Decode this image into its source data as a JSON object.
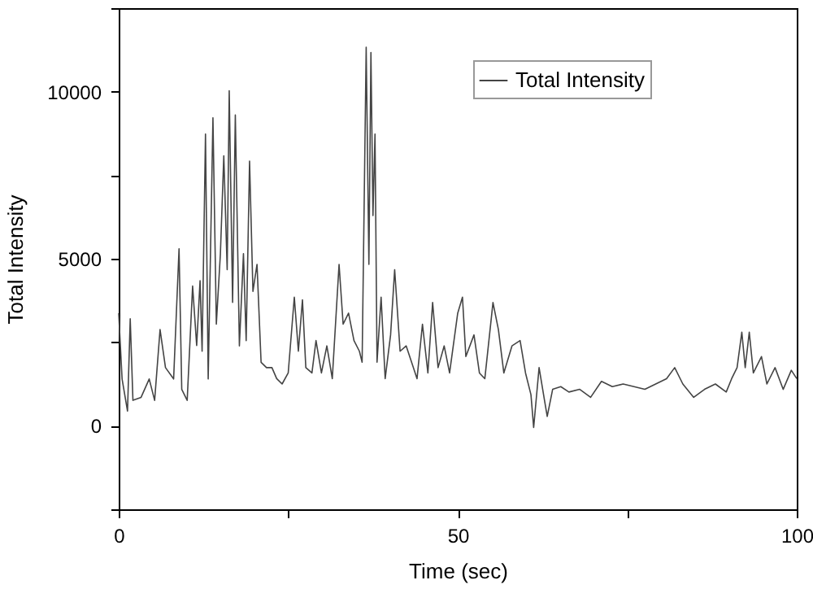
{
  "chart_data": {
    "type": "line",
    "xlabel": "Time (sec)",
    "ylabel": "Total Intensity",
    "xlim": [
      0,
      100
    ],
    "xticks": [
      0,
      {
        "value": 25,
        "label": null
      },
      50,
      {
        "value": 75,
        "label": null
      },
      100
    ],
    "ylim": [
      -2500,
      12500
    ],
    "yticks": [
      {
        "value": -2500,
        "label": null
      },
      0,
      {
        "value": 2500,
        "label": null
      },
      5000,
      {
        "value": 7500,
        "label": null
      },
      10000,
      {
        "value": 12500,
        "label": null
      }
    ],
    "grid": false,
    "legend": "top right",
    "marker": "none",
    "line_style": "solid",
    "series": [
      {
        "name": "Total Intensity",
        "color": "#444444",
        "x": [
          0,
          0.5,
          1.3,
          1.7,
          2.1,
          3.3,
          4.5,
          5.3,
          6.1,
          6.9,
          8.1,
          8.9,
          9.3,
          10.1,
          10.9,
          11.5,
          12.0,
          12.3,
          12.8,
          13.2,
          13.9,
          14.4,
          15.0,
          15.5,
          16.0,
          16.3,
          16.8,
          17.2,
          17.8,
          18.4,
          18.8,
          19.3,
          19.8,
          20.4,
          21.0,
          21.8,
          22.6,
          23.3,
          24.1,
          25.0,
          25.9,
          26.5,
          27.1,
          27.6,
          28.5,
          29.1,
          29.9,
          30.7,
          31.5,
          32.5,
          33.1,
          33.9,
          34.7,
          35.5,
          35.9,
          36.5,
          36.9,
          37.2,
          37.5,
          37.8,
          38.1,
          38.7,
          39.3,
          40.1,
          40.7,
          41.5,
          42.4,
          44.0,
          44.8,
          45.6,
          46.3,
          47.1,
          48.0,
          48.8,
          50.0,
          50.7,
          51.2,
          52.4,
          53.2,
          54.0,
          55.2,
          56.0,
          56.8,
          58.0,
          59.2,
          60.0,
          60.8,
          61.2,
          62.0,
          62.8,
          63.2,
          64.0,
          65.2,
          66.4,
          68.0,
          69.6,
          71.2,
          72.8,
          74.4,
          76.0,
          77.6,
          79.2,
          80.8,
          82.0,
          83.2,
          84.8,
          86.4,
          88.0,
          89.6,
          90.4,
          91.2,
          91.9,
          92.4,
          93.0,
          93.6,
          94.8,
          95.6,
          96.8,
          98.0,
          99.2,
          100
        ],
        "values": [
          3370,
          1400,
          440,
          3200,
          760,
          850,
          1400,
          760,
          2880,
          1740,
          1400,
          5300,
          1090,
          760,
          4180,
          2400,
          4340,
          2230,
          8730,
          1400,
          9220,
          3040,
          5150,
          8080,
          4670,
          10030,
          3690,
          9300,
          2390,
          5150,
          2550,
          7920,
          4020,
          4830,
          1900,
          1740,
          1740,
          1410,
          1250,
          1580,
          3850,
          2230,
          3770,
          1740,
          1580,
          2550,
          1580,
          2390,
          1410,
          4830,
          3040,
          3370,
          2550,
          2230,
          1900,
          11330,
          4830,
          11170,
          6290,
          8730,
          1900,
          3850,
          1410,
          2720,
          4670,
          2230,
          2390,
          1410,
          3040,
          1580,
          3690,
          1740,
          2390,
          1580,
          3370,
          3850,
          2070,
          2720,
          1580,
          1410,
          3690,
          2880,
          1580,
          2390,
          2550,
          1580,
          930,
          -50,
          1740,
          760,
          280,
          1090,
          1170,
          1010,
          1090,
          850,
          1330,
          1170,
          1250,
          1170,
          1090,
          1250,
          1410,
          1740,
          1250,
          850,
          1090,
          1250,
          1010,
          1410,
          1740,
          2800,
          1740,
          2800,
          1580,
          2070,
          1250,
          1740,
          1090,
          1660,
          1410
        ]
      }
    ]
  }
}
